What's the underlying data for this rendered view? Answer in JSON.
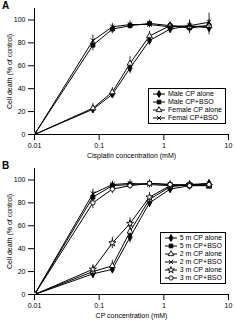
{
  "chart_data": [
    {
      "type": "line",
      "title": "A",
      "x_label": "Cisplatin concentration (mM)",
      "y_label": "Cell death (% of control)",
      "log": "x",
      "xlim": [
        0.01,
        10
      ],
      "xticks": [
        0.01,
        0.1,
        1,
        10
      ],
      "ylim": [
        0,
        110
      ],
      "yticks": [
        0,
        20,
        40,
        60,
        80,
        100
      ],
      "grid": false,
      "legend": "right",
      "x": [
        0.01,
        0.08,
        0.16,
        0.3,
        0.6,
        1.25,
        2.5,
        5
      ],
      "series": [
        {
          "name": "Male CP alone",
          "color": "#000000",
          "marker": "diamond",
          "values": [
            0,
            22,
            35,
            58,
            82,
            92,
            95,
            93
          ],
          "errors": [
            0,
            3,
            3,
            5,
            4,
            3,
            4,
            6
          ]
        },
        {
          "name": "Male CP+BSO",
          "color": "#000000",
          "marker": "square",
          "values": [
            0,
            78,
            92,
            95,
            97,
            95,
            93,
            95
          ],
          "errors": [
            0,
            5,
            4,
            3,
            3,
            3,
            5,
            5
          ]
        },
        {
          "name": "Female CP alone",
          "color": "#000000",
          "marker": "triangle",
          "values": [
            0,
            23,
            37,
            62,
            86,
            95,
            94,
            95
          ],
          "errors": [
            0,
            4,
            4,
            6,
            4,
            3,
            5,
            5
          ]
        },
        {
          "name": "Femal CP+BSO",
          "color": "#000000",
          "marker": "times",
          "values": [
            0,
            82,
            94,
            96,
            96,
            94,
            95,
            98
          ],
          "errors": [
            0,
            5,
            3,
            3,
            3,
            4,
            5,
            8
          ]
        }
      ]
    },
    {
      "type": "line",
      "title": "B",
      "x_label": "CP concentration (mM)",
      "y_label": "Cell death (% of control)",
      "log": "x",
      "xlim": [
        0.01,
        10
      ],
      "xticks": [
        0.01,
        0.1,
        1,
        10
      ],
      "ylim": [
        0,
        110
      ],
      "yticks": [
        0,
        20,
        40,
        60,
        80,
        100
      ],
      "grid": false,
      "legend": "right",
      "x": [
        0.01,
        0.08,
        0.16,
        0.3,
        0.6,
        1.25,
        2.5,
        5
      ],
      "series": [
        {
          "name": "5 m CP alone",
          "color": "#000000",
          "marker": "diamond",
          "values": [
            0,
            18,
            22,
            50,
            80,
            92,
            95,
            97
          ],
          "errors": [
            0,
            4,
            4,
            5,
            4,
            3,
            3,
            3
          ]
        },
        {
          "name": "5 m CP+BSO",
          "color": "#000000",
          "marker": "square",
          "values": [
            0,
            85,
            95,
            96,
            97,
            96,
            95,
            95
          ],
          "errors": [
            0,
            5,
            3,
            3,
            3,
            3,
            3,
            3
          ]
        },
        {
          "name": "2 m CP alone",
          "color": "#000000",
          "marker": "triangle",
          "values": [
            0,
            20,
            25,
            55,
            83,
            94,
            96,
            95
          ],
          "errors": [
            0,
            4,
            5,
            5,
            4,
            3,
            3,
            3
          ]
        },
        {
          "name": "2 m CP+BSO",
          "color": "#000000",
          "marker": "times",
          "values": [
            0,
            88,
            96,
            97,
            96,
            95,
            96,
            97
          ],
          "errors": [
            0,
            4,
            3,
            3,
            3,
            3,
            3,
            3
          ]
        },
        {
          "name": "3 m CP alone",
          "color": "#000000",
          "marker": "star",
          "values": [
            0,
            22,
            45,
            62,
            85,
            95,
            96,
            95
          ],
          "errors": [
            0,
            4,
            5,
            5,
            4,
            3,
            3,
            3
          ]
        },
        {
          "name": "3 m CP+BSO",
          "color": "#000000",
          "marker": "circle",
          "values": [
            0,
            80,
            92,
            95,
            97,
            96,
            95,
            96
          ],
          "errors": [
            0,
            5,
            4,
            3,
            3,
            3,
            3,
            3
          ]
        }
      ]
    }
  ]
}
